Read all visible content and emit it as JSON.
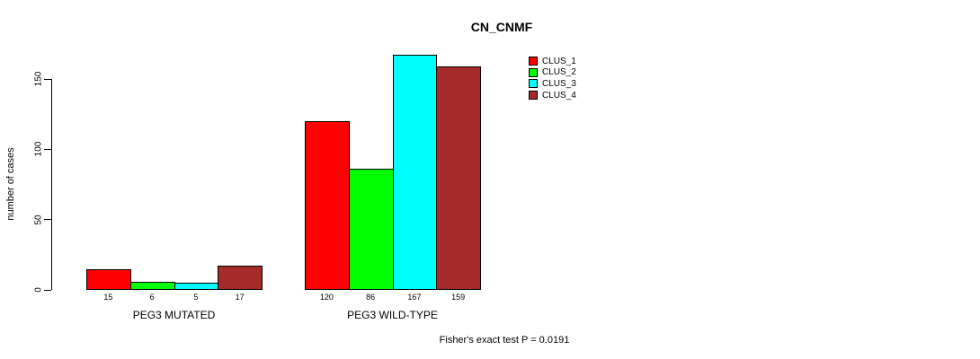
{
  "chart_data": {
    "type": "bar",
    "title": "CN_CNMF",
    "ylabel": "number of cases",
    "xlabel": "",
    "ylim": [
      0,
      150
    ],
    "yticks": [
      0,
      50,
      100,
      150
    ],
    "categories": [
      "PEG3 MUTATED",
      "PEG3 WILD-TYPE"
    ],
    "series": [
      {
        "name": "CLUS_1",
        "color": "#FF0000",
        "values": [
          15,
          120
        ]
      },
      {
        "name": "CLUS_2",
        "color": "#00FF00",
        "values": [
          6,
          86
        ]
      },
      {
        "name": "CLUS_3",
        "color": "#00FFFF",
        "values": [
          5,
          167
        ]
      },
      {
        "name": "CLUS_4",
        "color": "#A52A2A",
        "values": [
          17,
          159
        ]
      }
    ],
    "bar_value_labels": [
      [
        "15",
        "6",
        "5",
        "17"
      ],
      [
        "120",
        "86",
        "167",
        "159"
      ]
    ],
    "legend_position": "top-right",
    "grid": false,
    "annotation": "Fisher's exact test P = 0.0191"
  }
}
